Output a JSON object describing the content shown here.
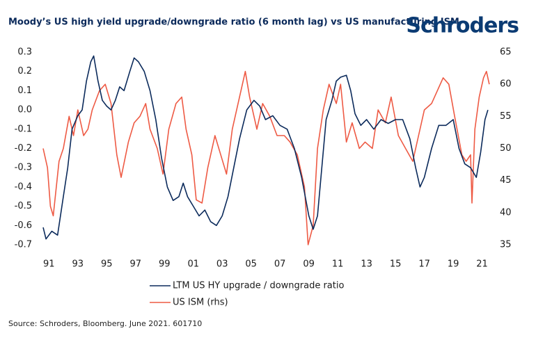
{
  "brand": "Schroders",
  "chart_data": {
    "type": "line",
    "title": "Moody’s US high yield upgrade/downgrade ratio (6 month lag) vs US manufacturing ISM",
    "source": "Source: Schroders, Bloomberg. June 2021. 601710",
    "xlim": [
      1990.6,
      2021.6
    ],
    "xticks": [
      {
        "value": 1991,
        "label": "91"
      },
      {
        "value": 1993,
        "label": "93"
      },
      {
        "value": 1995,
        "label": "95"
      },
      {
        "value": 1997,
        "label": "97"
      },
      {
        "value": 1999,
        "label": "99"
      },
      {
        "value": 2001,
        "label": "01"
      },
      {
        "value": 2003,
        "label": "03"
      },
      {
        "value": 2005,
        "label": "05"
      },
      {
        "value": 2007,
        "label": "07"
      },
      {
        "value": 2009,
        "label": "09"
      },
      {
        "value": 2011,
        "label": "11"
      },
      {
        "value": 2013,
        "label": "13"
      },
      {
        "value": 2015,
        "label": "15"
      },
      {
        "value": 2017,
        "label": "17"
      },
      {
        "value": 2019,
        "label": "19"
      },
      {
        "value": 2021,
        "label": "21"
      }
    ],
    "ylim": [
      -0.7,
      0.3
    ],
    "yticks": [
      0.3,
      0.2,
      0.1,
      {
        "value": 0,
        "label": "0.0"
      },
      -0.1,
      -0.2,
      -0.3,
      -0.4,
      -0.5,
      -0.6,
      -0.7
    ],
    "y2lim": [
      35,
      65
    ],
    "y2ticks": [
      65,
      60,
      55,
      50,
      45,
      40,
      35
    ],
    "legend": "bottom",
    "series": [
      {
        "name": "LTM US HY upgrade / downgrade ratio",
        "color": "#0b2a5b",
        "x": [
          1990.6,
          1990.8,
          1991.2,
          1991.6,
          1992.0,
          1992.3,
          1992.6,
          1993.0,
          1993.3,
          1993.6,
          1993.9,
          1994.1,
          1994.4,
          1994.7,
          1995.0,
          1995.3,
          1995.6,
          1995.9,
          1996.2,
          1996.6,
          1996.9,
          1997.2,
          1997.6,
          1998.0,
          1998.4,
          1998.8,
          1999.2,
          1999.6,
          2000.0,
          2000.3,
          2000.6,
          2001.0,
          2001.4,
          2001.8,
          2002.2,
          2002.6,
          2003.0,
          2003.4,
          2003.8,
          2004.2,
          2004.7,
          2005.2,
          2005.6,
          2006.0,
          2006.5,
          2007.0,
          2007.5,
          2008.0,
          2008.5,
          2009.0,
          2009.3,
          2009.6,
          2009.9,
          2010.2,
          2010.6,
          2010.9,
          2011.2,
          2011.6,
          2011.9,
          2012.2,
          2012.6,
          2013.0,
          2013.5,
          2014.0,
          2014.5,
          2015.0,
          2015.5,
          2016.0,
          2016.4,
          2016.7,
          2017.0,
          2017.5,
          2018.0,
          2018.5,
          2019.0,
          2019.4,
          2019.8,
          2020.2,
          2020.6,
          2020.9,
          2021.2,
          2021.4
        ],
        "values": [
          -0.61,
          -0.67,
          -0.63,
          -0.65,
          -0.45,
          -0.3,
          -0.1,
          -0.03,
          0.0,
          0.15,
          0.25,
          0.28,
          0.15,
          0.05,
          0.02,
          0.0,
          0.05,
          0.12,
          0.1,
          0.2,
          0.27,
          0.25,
          0.2,
          0.1,
          -0.05,
          -0.25,
          -0.4,
          -0.47,
          -0.45,
          -0.38,
          -0.45,
          -0.5,
          -0.55,
          -0.52,
          -0.58,
          -0.6,
          -0.55,
          -0.45,
          -0.3,
          -0.15,
          0.0,
          0.05,
          0.02,
          -0.05,
          -0.03,
          -0.08,
          -0.1,
          -0.2,
          -0.35,
          -0.55,
          -0.62,
          -0.55,
          -0.3,
          -0.05,
          0.05,
          0.15,
          0.17,
          0.18,
          0.1,
          -0.02,
          -0.08,
          -0.05,
          -0.1,
          -0.05,
          -0.07,
          -0.05,
          -0.05,
          -0.15,
          -0.3,
          -0.4,
          -0.35,
          -0.2,
          -0.08,
          -0.08,
          -0.05,
          -0.2,
          -0.28,
          -0.3,
          -0.35,
          -0.22,
          -0.05,
          0.0
        ]
      },
      {
        "name": "US ISM (rhs)",
        "color": "#ee5a44",
        "axis": "y2",
        "x": [
          1990.6,
          1990.9,
          1991.1,
          1991.3,
          1991.7,
          1992.0,
          1992.4,
          1992.7,
          1993.0,
          1993.4,
          1993.7,
          1994.0,
          1994.5,
          1994.9,
          1995.3,
          1995.7,
          1996.0,
          1996.5,
          1996.9,
          1997.3,
          1997.7,
          1998.0,
          1998.5,
          1998.9,
          1999.3,
          1999.8,
          2000.2,
          2000.5,
          2000.9,
          2001.2,
          2001.6,
          2002.0,
          2002.5,
          2002.9,
          2003.3,
          2003.7,
          2004.2,
          2004.6,
          2004.9,
          2005.4,
          2005.8,
          2006.3,
          2006.8,
          2007.3,
          2007.7,
          2008.2,
          2008.7,
          2008.95,
          2009.3,
          2009.6,
          2010.0,
          2010.4,
          2010.9,
          2011.2,
          2011.6,
          2012.0,
          2012.5,
          2012.9,
          2013.4,
          2013.8,
          2014.3,
          2014.7,
          2015.2,
          2015.7,
          2016.2,
          2016.6,
          2017.0,
          2017.5,
          2017.9,
          2018.3,
          2018.7,
          2019.1,
          2019.6,
          2019.9,
          2020.2,
          2020.3,
          2020.5,
          2020.8,
          2021.1,
          2021.3,
          2021.5
        ],
        "values": [
          50,
          47,
          41,
          39.5,
          48,
          50,
          55,
          52,
          56,
          52,
          53,
          56,
          59,
          60,
          57,
          49,
          45.5,
          51,
          54,
          55,
          57,
          53,
          50,
          46,
          53,
          57,
          58,
          53,
          49,
          42,
          41.5,
          47,
          52,
          49,
          46,
          53,
          58,
          62,
          58,
          53,
          57,
          55,
          52,
          52,
          51,
          49,
          44,
          35,
          38,
          50,
          56,
          60,
          57,
          60,
          51,
          54,
          50,
          51,
          50,
          56,
          54,
          58,
          52,
          50,
          48,
          52,
          56,
          57,
          59,
          61,
          60,
          55,
          49,
          48,
          49,
          41.5,
          53,
          58,
          61,
          62,
          60
        ]
      }
    ]
  }
}
